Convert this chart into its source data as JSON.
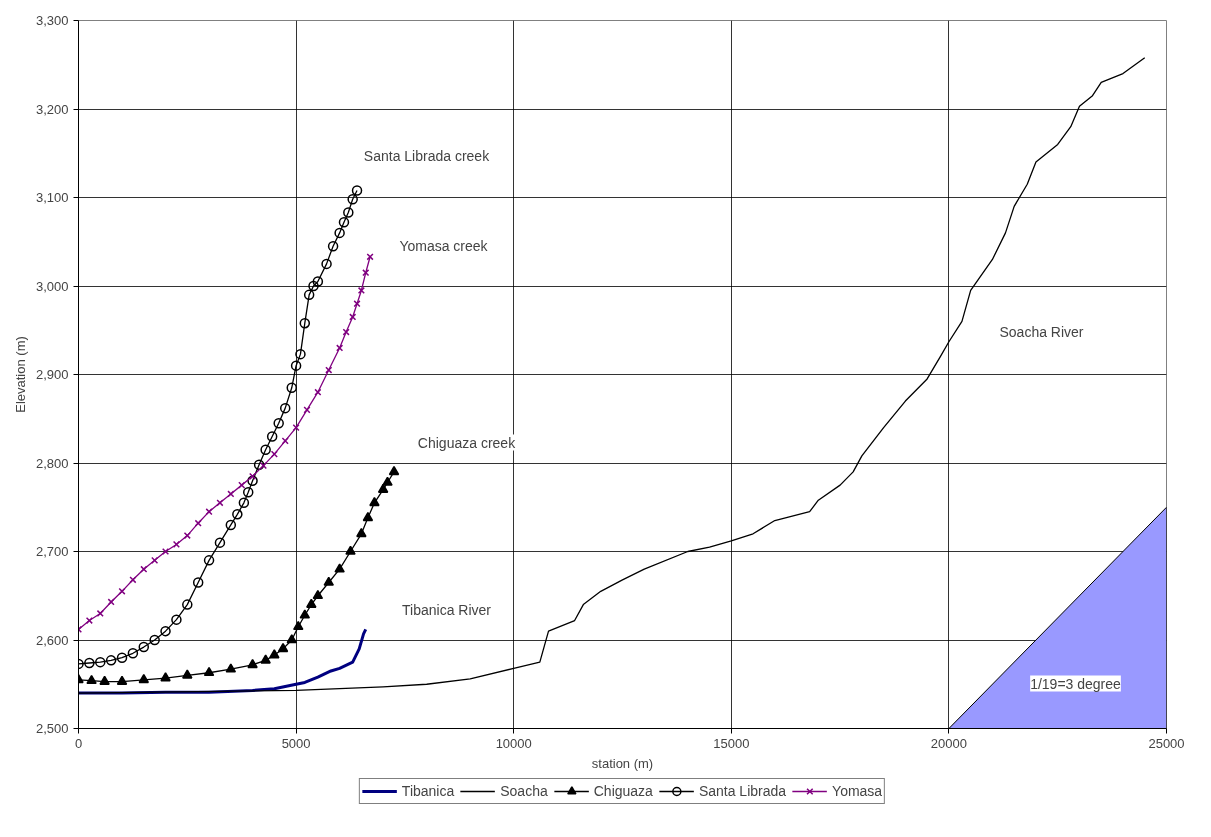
{
  "chart_data": {
    "type": "line",
    "xlabel": "station (m)",
    "ylabel": "Elevation (m)",
    "xlim": [
      0,
      25000
    ],
    "xticks": [
      0,
      5000,
      10000,
      15000,
      20000,
      25000
    ],
    "ylim": [
      2500,
      3300
    ],
    "yticks": [
      {
        "value": 2500,
        "label": "2,500"
      },
      {
        "value": 2600,
        "label": "2,600"
      },
      {
        "value": 2700,
        "label": "2,700"
      },
      {
        "value": 2800,
        "label": "2,800"
      },
      {
        "value": 2900,
        "label": "2,900"
      },
      {
        "value": 3000,
        "label": "3,000"
      },
      {
        "value": 3100,
        "label": "3,100"
      },
      {
        "value": 3200,
        "label": "3,200"
      },
      {
        "value": 3300,
        "label": "3,300"
      }
    ],
    "grid": true,
    "legend": "bottom",
    "series": [
      {
        "name": "Tibanica",
        "color": "#000080",
        "marker": "none",
        "x": [
          0,
          1000,
          2000,
          3000,
          4000,
          4500,
          5000,
          5200,
          5500,
          5800,
          6000,
          6300,
          6450,
          6550,
          6600
        ],
        "values": [
          2540,
          2540,
          2541,
          2541,
          2543,
          2545,
          2550,
          2552,
          2558,
          2565,
          2568,
          2575,
          2590,
          2607,
          2612
        ]
      },
      {
        "name": "Soacha",
        "color": "#000000",
        "marker": "none",
        "x": [
          0,
          5000,
          7000,
          8000,
          9000,
          10000,
          10600,
          10800,
          11400,
          11600,
          12000,
          12500,
          13000,
          14000,
          14500,
          15000,
          15500,
          16000,
          16800,
          17000,
          17500,
          17800,
          18000,
          18500,
          19000,
          19500,
          19800,
          20000,
          20300,
          20500,
          21000,
          21300,
          21500,
          21800,
          22000,
          22500,
          22800,
          23000,
          23300,
          23500,
          24000,
          24500
        ],
        "values": [
          2540,
          2543,
          2547,
          2550,
          2556,
          2568,
          2575,
          2610,
          2622,
          2640,
          2655,
          2668,
          2680,
          2700,
          2705,
          2712,
          2720,
          2735,
          2745,
          2758,
          2775,
          2790,
          2808,
          2840,
          2870,
          2895,
          2920,
          2937,
          2960,
          2995,
          3030,
          3060,
          3090,
          3115,
          3140,
          3160,
          3180,
          3203,
          3215,
          3230,
          3240,
          3258
        ]
      },
      {
        "name": "Chiguaza",
        "color": "#000000",
        "marker": "triangle",
        "x": [
          0,
          300,
          600,
          1000,
          1500,
          2000,
          2500,
          3000,
          3500,
          4000,
          4300,
          4500,
          4700,
          4900,
          5050,
          5200,
          5350,
          5500,
          5750,
          6000,
          6250,
          6500,
          6650,
          6800,
          7000,
          7100,
          7250
        ],
        "values": [
          2555,
          2554,
          2553,
          2553,
          2555,
          2557,
          2560,
          2563,
          2567,
          2572,
          2577,
          2583,
          2590,
          2600,
          2615,
          2628,
          2640,
          2650,
          2665,
          2680,
          2700,
          2720,
          2738,
          2755,
          2770,
          2778,
          2790
        ]
      },
      {
        "name": "Santa Librada",
        "color": "#000000",
        "marker": "circle",
        "x": [
          0,
          250,
          500,
          750,
          1000,
          1250,
          1500,
          1750,
          2000,
          2250,
          2500,
          2750,
          3000,
          3250,
          3500,
          3650,
          3800,
          3900,
          4000,
          4150,
          4300,
          4450,
          4600,
          4750,
          4900,
          5000,
          5100,
          5200,
          5300,
          5400,
          5500,
          5700,
          5850,
          6000,
          6100,
          6200,
          6300,
          6400
        ],
        "values": [
          2573,
          2574,
          2575,
          2577,
          2580,
          2585,
          2592,
          2600,
          2610,
          2623,
          2640,
          2665,
          2690,
          2710,
          2730,
          2742,
          2755,
          2767,
          2780,
          2798,
          2815,
          2830,
          2845,
          2862,
          2885,
          2910,
          2923,
          2958,
          2990,
          3000,
          3005,
          3025,
          3045,
          3060,
          3072,
          3083,
          3098,
          3108
        ]
      },
      {
        "name": "Yomasa",
        "color": "#800080",
        "marker": "cross",
        "x": [
          0,
          250,
          500,
          750,
          1000,
          1250,
          1500,
          1750,
          2000,
          2250,
          2500,
          2750,
          3000,
          3250,
          3500,
          3750,
          4000,
          4250,
          4500,
          4750,
          5000,
          5250,
          5500,
          5750,
          6000,
          6150,
          6300,
          6400,
          6500,
          6600,
          6700
        ],
        "values": [
          2612,
          2622,
          2630,
          2643,
          2655,
          2668,
          2680,
          2690,
          2700,
          2708,
          2718,
          2732,
          2745,
          2755,
          2765,
          2775,
          2785,
          2797,
          2810,
          2825,
          2840,
          2860,
          2880,
          2905,
          2930,
          2948,
          2965,
          2980,
          2995,
          3015,
          3033
        ]
      },
      {
        "type": "area",
        "color": "#9999ff",
        "x": [
          20000,
          25000
        ],
        "values": [
          2500,
          2750
        ]
      }
    ],
    "annotations": [
      "Santa Librada creek",
      "Yomasa creek",
      "Chiguaza creek",
      "Tibanica River",
      "Soacha River",
      "1/19=3 degree"
    ]
  }
}
